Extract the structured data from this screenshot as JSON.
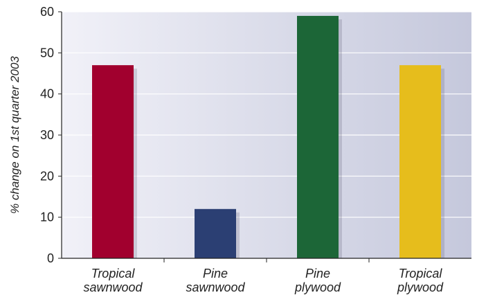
{
  "chart_data": {
    "type": "bar",
    "categories": [
      [
        "Tropical",
        "sawnwood"
      ],
      [
        "Pine",
        "sawnwood"
      ],
      [
        "Pine",
        "plywood"
      ],
      [
        "Tropical",
        "plywood"
      ]
    ],
    "values": [
      47,
      12,
      59,
      47
    ],
    "colors": [
      "#A1002E",
      "#2B3F73",
      "#1C6637",
      "#E6BD1C"
    ],
    "title": "",
    "xlabel": "",
    "ylabel": "% change on 1st quarter 2003",
    "ylim": [
      0,
      60
    ],
    "yticks": [
      0,
      10,
      20,
      30,
      40,
      50,
      60
    ],
    "grid": true,
    "legend": "none"
  }
}
